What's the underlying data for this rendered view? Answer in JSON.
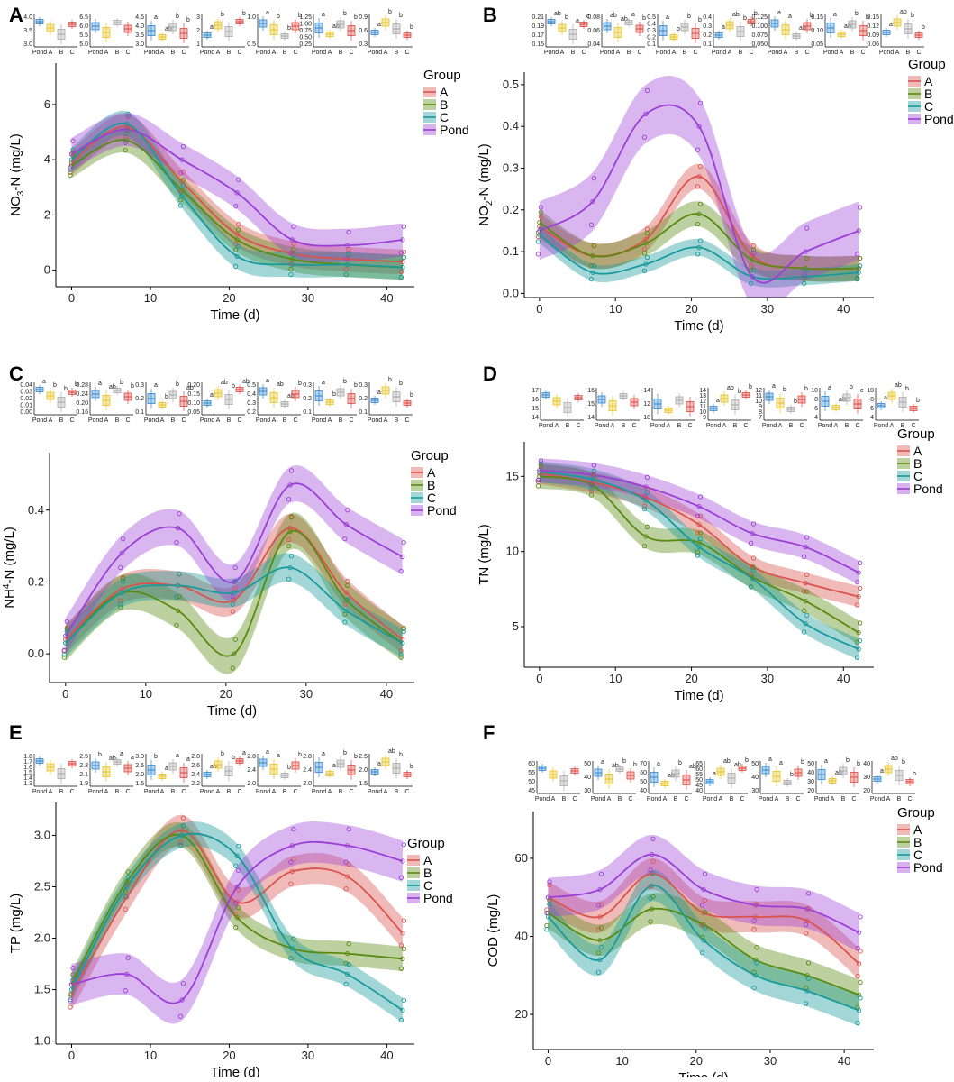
{
  "figure": {
    "groups": [
      {
        "name": "A",
        "color": "#d9534f"
      },
      {
        "name": "B",
        "color": "#5a8a12"
      },
      {
        "name": "C",
        "color": "#1a9a9a"
      },
      {
        "name": "Pond",
        "color": "#9b3fd6"
      }
    ],
    "legend_title": "Group",
    "inset_categories": [
      "Pond",
      "A",
      "B",
      "C"
    ],
    "inset_colors": [
      "#2f86d1",
      "#e6c21f",
      "#a9a9a9",
      "#e0473f"
    ]
  },
  "chart_data": [
    {
      "panel": "A",
      "type": "line",
      "xlabel": "Time (d)",
      "ylabel_main": "NO",
      "ylabel_sub": "3",
      "ylabel_rest": "-N (mg/L)",
      "xlim": [
        -2,
        43.5
      ],
      "ylim": [
        -0.6,
        7.5
      ],
      "xticks": [
        0,
        10,
        20,
        30,
        40
      ],
      "yticks": [
        0,
        2,
        4,
        6
      ],
      "x": [
        0,
        7,
        14,
        21,
        28,
        35,
        42
      ],
      "series": [
        {
          "name": "A",
          "values": [
            3.9,
            5.2,
            3.2,
            1.3,
            0.6,
            0.4,
            0.3
          ],
          "band": 0.45
        },
        {
          "name": "B",
          "values": [
            3.8,
            4.7,
            2.9,
            1.1,
            0.4,
            0.2,
            0.1
          ],
          "band": 0.45
        },
        {
          "name": "C",
          "values": [
            4.0,
            5.3,
            2.7,
            0.5,
            0.2,
            0.2,
            0.1
          ],
          "band": 0.45
        },
        {
          "name": "Pond",
          "values": [
            4.2,
            5.1,
            4.0,
            2.8,
            1.1,
            0.9,
            1.1
          ],
          "band": 0.6
        }
      ],
      "insets": [
        {
          "yticks": [
            "4.0",
            "3.5",
            "3.0"
          ],
          "letters": [
            "",
            "",
            "",
            ""
          ]
        },
        {
          "yticks": [
            "6.5",
            "6.0",
            "5.5",
            "5.0"
          ],
          "letters": [
            "",
            "",
            "",
            ""
          ]
        },
        {
          "yticks": [
            "4.5",
            "4.0",
            "3.5",
            "3.0"
          ],
          "letters": [
            "a",
            "ab",
            "b",
            "b"
          ]
        },
        {
          "yticks": [
            "3",
            "2",
            "1"
          ],
          "letters": [
            "a",
            "b",
            "",
            "b"
          ]
        },
        {
          "yticks": [
            "1.0",
            "0.5"
          ],
          "letters": [
            "a",
            "b",
            "b",
            "b"
          ]
        },
        {
          "yticks": [
            "1.25",
            "1.00",
            "0.75",
            "0.50",
            "0.25"
          ],
          "letters": [
            "a",
            "ab",
            "b",
            "b"
          ]
        },
        {
          "yticks": [
            "0.9",
            "0.6",
            "0.3"
          ],
          "letters": [
            "a",
            "b",
            "b",
            "b"
          ]
        }
      ]
    },
    {
      "panel": "B",
      "type": "line",
      "xlabel": "Time (d)",
      "ylabel_main": "NO",
      "ylabel_sub": "2",
      "ylabel_rest": "-N (mg/L)",
      "xlim": [
        -2,
        44
      ],
      "ylim": [
        -0.01,
        0.53
      ],
      "xticks": [
        0,
        10,
        20,
        30,
        40
      ],
      "yticks": [
        0.0,
        0.1,
        0.2,
        0.3,
        0.4,
        0.5
      ],
      "x": [
        0,
        7,
        14,
        21,
        28,
        35,
        42
      ],
      "series": [
        {
          "name": "A",
          "values": [
            0.16,
            0.09,
            0.13,
            0.28,
            0.09,
            0.06,
            0.06
          ],
          "band": 0.03
        },
        {
          "name": "B",
          "values": [
            0.17,
            0.09,
            0.12,
            0.19,
            0.08,
            0.06,
            0.06
          ],
          "band": 0.03
        },
        {
          "name": "C",
          "values": [
            0.14,
            0.05,
            0.07,
            0.11,
            0.04,
            0.04,
            0.05
          ],
          "band": 0.02
        },
        {
          "name": "Pond",
          "values": [
            0.15,
            0.22,
            0.43,
            0.4,
            0.04,
            0.1,
            0.15
          ],
          "band": 0.07
        }
      ],
      "insets": [
        {
          "yticks": [
            "0.21",
            "0.19",
            "0.17",
            "0.15"
          ],
          "letters": [
            "ab",
            "b",
            "a",
            "c"
          ]
        },
        {
          "yticks": [
            "0.08",
            "0.06",
            "0.04"
          ],
          "letters": [
            "ab",
            "ab",
            "a",
            "b"
          ]
        },
        {
          "yticks": [
            "0.5",
            "0.4",
            "0.3",
            "0.2",
            "0.1"
          ],
          "letters": [
            "a",
            "b",
            "b",
            "b"
          ]
        },
        {
          "yticks": [
            "0.4",
            "0.3",
            "0.2",
            "0.1"
          ],
          "letters": [
            "a",
            "ab",
            "b",
            "b"
          ]
        },
        {
          "yticks": [
            "0.125",
            "0.100",
            "0.075",
            "0.050"
          ],
          "letters": [
            "a",
            "a",
            "ab",
            "b"
          ]
        },
        {
          "yticks": [
            "0.15",
            "0.10",
            "0.05"
          ],
          "letters": [
            "a",
            "ab",
            "b",
            "b"
          ]
        },
        {
          "yticks": [
            "0.15",
            "0.12",
            "0.09",
            "0.06"
          ],
          "letters": [
            "a",
            "ab",
            "b",
            "b"
          ]
        }
      ]
    },
    {
      "panel": "C",
      "type": "line",
      "xlabel": "Time (d)",
      "ylabel_main": "NH",
      "ylabel_sup": "4",
      "ylabel_rest": "-N (mg/L)",
      "xlim": [
        -2,
        43.5
      ],
      "ylim": [
        -0.08,
        0.56
      ],
      "xticks": [
        0,
        10,
        20,
        30,
        40
      ],
      "yticks": [
        0.0,
        0.2,
        0.4
      ],
      "x": [
        0,
        7,
        14,
        21,
        28,
        35,
        42
      ],
      "series": [
        {
          "name": "A",
          "values": [
            0.04,
            0.18,
            0.19,
            0.15,
            0.35,
            0.17,
            0.04
          ],
          "band": 0.04
        },
        {
          "name": "B",
          "values": [
            0.03,
            0.17,
            0.12,
            0.0,
            0.34,
            0.15,
            0.03
          ],
          "band": 0.05
        },
        {
          "name": "C",
          "values": [
            0.03,
            0.17,
            0.19,
            0.17,
            0.24,
            0.12,
            0.03
          ],
          "band": 0.04
        },
        {
          "name": "Pond",
          "values": [
            0.05,
            0.28,
            0.35,
            0.2,
            0.47,
            0.36,
            0.27
          ],
          "band": 0.05
        }
      ],
      "insets": [
        {
          "yticks": [
            "0.04",
            "0.03",
            "0.02",
            "0.01",
            "0.00"
          ],
          "letters": [
            "a",
            "b",
            "b",
            "b"
          ]
        },
        {
          "yticks": [
            "0.28",
            "0.24",
            "0.20",
            "0.16"
          ],
          "letters": [
            "a",
            "ab",
            "b",
            "b"
          ]
        },
        {
          "yticks": [
            "0.3",
            "0.2",
            "0.1"
          ],
          "letters": [
            "a",
            "b",
            "b",
            "ab"
          ]
        },
        {
          "yticks": [
            "0.20",
            "0.15",
            "0.10",
            "0.05"
          ],
          "letters": [
            "a",
            "ab",
            "b",
            "ab"
          ]
        },
        {
          "yticks": [
            "0.5",
            "0.4",
            "0.3",
            "0.2"
          ],
          "letters": [
            "a",
            "ab",
            "ab",
            "b"
          ]
        },
        {
          "yticks": [
            "0.3",
            "0.2",
            "0.1"
          ],
          "letters": [
            "a",
            "b",
            "b",
            "b"
          ]
        },
        {
          "yticks": [
            "0.3",
            "0.2",
            "0.1"
          ],
          "letters": [
            "a",
            "b",
            "b",
            "b"
          ]
        }
      ]
    },
    {
      "panel": "D",
      "type": "line",
      "xlabel": "Time (d)",
      "ylabel_main": "TN (mg/L)",
      "xlim": [
        -2,
        44
      ],
      "ylim": [
        2.3,
        17.3
      ],
      "xticks": [
        0,
        10,
        20,
        30,
        40
      ],
      "yticks": [
        5,
        10,
        15
      ],
      "x": [
        0,
        7,
        14,
        21,
        28,
        35,
        42
      ],
      "series": [
        {
          "name": "A",
          "values": [
            15.2,
            14.6,
            13.6,
            11.8,
            9.0,
            7.9,
            7.0
          ],
          "band": 0.7
        },
        {
          "name": "B",
          "values": [
            15.0,
            14.4,
            11.0,
            10.6,
            8.3,
            6.7,
            4.6
          ],
          "band": 0.8
        },
        {
          "name": "C",
          "values": [
            15.3,
            14.8,
            13.4,
            10.3,
            8.2,
            5.2,
            3.5
          ],
          "band": 0.7
        },
        {
          "name": "Pond",
          "values": [
            15.4,
            15.1,
            14.3,
            13.0,
            11.2,
            10.3,
            8.6
          ],
          "band": 0.8
        }
      ],
      "insets": [
        {
          "yticks": [
            "17",
            "16",
            "15",
            "14"
          ],
          "letters": [
            "",
            "",
            "",
            ""
          ]
        },
        {
          "yticks": [
            "16",
            "15",
            "14"
          ],
          "letters": [
            "",
            "",
            "",
            ""
          ]
        },
        {
          "yticks": [
            "14",
            "12",
            "10"
          ],
          "letters": [
            "",
            "",
            "",
            ""
          ]
        },
        {
          "yticks": [
            "14",
            "13",
            "12",
            "11",
            "10",
            "9"
          ],
          "letters": [
            "a",
            "ab",
            "b",
            "b"
          ]
        },
        {
          "yticks": [
            "12",
            "11",
            "10",
            "9",
            "8",
            "7"
          ],
          "letters": [
            "a",
            "b",
            "b",
            "b"
          ]
        },
        {
          "yticks": [
            "10",
            "8",
            "6",
            "4"
          ],
          "letters": [
            "a",
            "ab",
            "b",
            "c"
          ]
        },
        {
          "yticks": [
            "10",
            "8",
            "6",
            "4"
          ],
          "letters": [
            "a",
            "ab",
            "b",
            "b"
          ]
        }
      ]
    },
    {
      "panel": "E",
      "type": "line",
      "xlabel": "Time (d)",
      "ylabel_main": "TP (mg/L)",
      "xlim": [
        -2,
        43.5
      ],
      "ylim": [
        0.97,
        3.32
      ],
      "xticks": [
        0,
        10,
        20,
        30,
        40
      ],
      "yticks": [
        1.0,
        1.5,
        2.0,
        2.5,
        3.0
      ],
      "x": [
        0,
        7,
        14,
        21,
        28,
        35,
        42
      ],
      "series": [
        {
          "name": "A",
          "values": [
            1.45,
            2.4,
            3.05,
            2.35,
            2.65,
            2.6,
            2.05
          ],
          "band": 0.15
        },
        {
          "name": "B",
          "values": [
            1.55,
            2.55,
            3.0,
            2.2,
            1.9,
            1.85,
            1.8
          ],
          "band": 0.12
        },
        {
          "name": "C",
          "values": [
            1.5,
            2.5,
            3.0,
            2.8,
            1.9,
            1.65,
            1.3
          ],
          "band": 0.12
        },
        {
          "name": "Pond",
          "values": [
            1.55,
            1.65,
            1.4,
            2.5,
            2.9,
            2.9,
            2.75
          ],
          "band": 0.2
        }
      ],
      "insets": [
        {
          "yticks": [
            "1.8",
            "1.7",
            "1.6",
            "1.5",
            "1.4",
            "1.3"
          ],
          "letters": [
            "",
            "",
            "",
            ""
          ]
        },
        {
          "yticks": [
            "2.5",
            "2.3",
            "2.1",
            "1.9"
          ],
          "letters": [
            "b",
            "ab",
            "a",
            "a"
          ]
        },
        {
          "yticks": [
            "3.0",
            "2.5",
            "2.0",
            "1.5"
          ],
          "letters": [
            "b",
            "a",
            "a",
            "a"
          ]
        },
        {
          "yticks": [
            "2.8",
            "2.6",
            "2.4",
            "2.2"
          ],
          "letters": [
            "ab",
            "b",
            "b",
            "a"
          ]
        },
        {
          "yticks": [
            "2.8",
            "2.4",
            "2.0"
          ],
          "letters": [
            "a",
            "a",
            "b",
            "b"
          ]
        },
        {
          "yticks": [
            "2.8",
            "2.4",
            "2.0"
          ],
          "letters": [
            "a",
            "a",
            "b",
            "b"
          ]
        },
        {
          "yticks": [
            "2.5",
            "2.0",
            "1.5"
          ],
          "letters": [
            "a",
            "ab",
            "b",
            "b"
          ]
        }
      ]
    },
    {
      "panel": "F",
      "type": "line",
      "xlabel": "Time (d)",
      "ylabel_main": "COD (mg/L)",
      "xlim": [
        -2,
        44
      ],
      "ylim": [
        11,
        72
      ],
      "xticks": [
        0,
        10,
        20,
        30,
        40
      ],
      "yticks": [
        20,
        40,
        60
      ],
      "x": [
        0,
        7,
        14,
        21,
        28,
        35,
        42
      ],
      "series": [
        {
          "name": "A",
          "values": [
            50,
            45,
            56,
            46,
            45,
            44,
            33
          ],
          "band": 4
        },
        {
          "name": "B",
          "values": [
            46,
            39,
            47,
            43,
            34,
            30,
            25
          ],
          "band": 4
        },
        {
          "name": "C",
          "values": [
            45,
            34,
            53,
            39,
            30,
            26,
            21
          ],
          "band": 4
        },
        {
          "name": "Pond",
          "values": [
            50,
            52,
            61,
            52,
            48,
            47,
            41
          ],
          "band": 5
        }
      ],
      "insets": [
        {
          "yticks": [
            "60",
            "55",
            "50",
            "45"
          ],
          "letters": [
            "",
            "",
            "",
            ""
          ]
        },
        {
          "yticks": [
            "50",
            "40",
            "30"
          ],
          "letters": [
            "a",
            "ab",
            "b",
            "b"
          ]
        },
        {
          "yticks": [
            "70",
            "60",
            "50",
            "40"
          ],
          "letters": [
            "a",
            "ab",
            "b",
            "ab"
          ]
        },
        {
          "yticks": [
            "65",
            "60",
            "55",
            "50",
            "45",
            "40"
          ],
          "letters": [
            "a",
            "ab",
            "ab",
            "b"
          ]
        },
        {
          "yticks": [
            "50",
            "40",
            "30"
          ],
          "letters": [
            "a",
            "a",
            "b",
            "b"
          ]
        },
        {
          "yticks": [
            "50",
            "40",
            "30",
            "20"
          ],
          "letters": [
            "a",
            "ab",
            "b",
            "b"
          ]
        },
        {
          "yticks": [
            "40",
            "30",
            "20"
          ],
          "letters": [
            "a",
            "ab",
            "b",
            "b"
          ]
        }
      ]
    }
  ]
}
